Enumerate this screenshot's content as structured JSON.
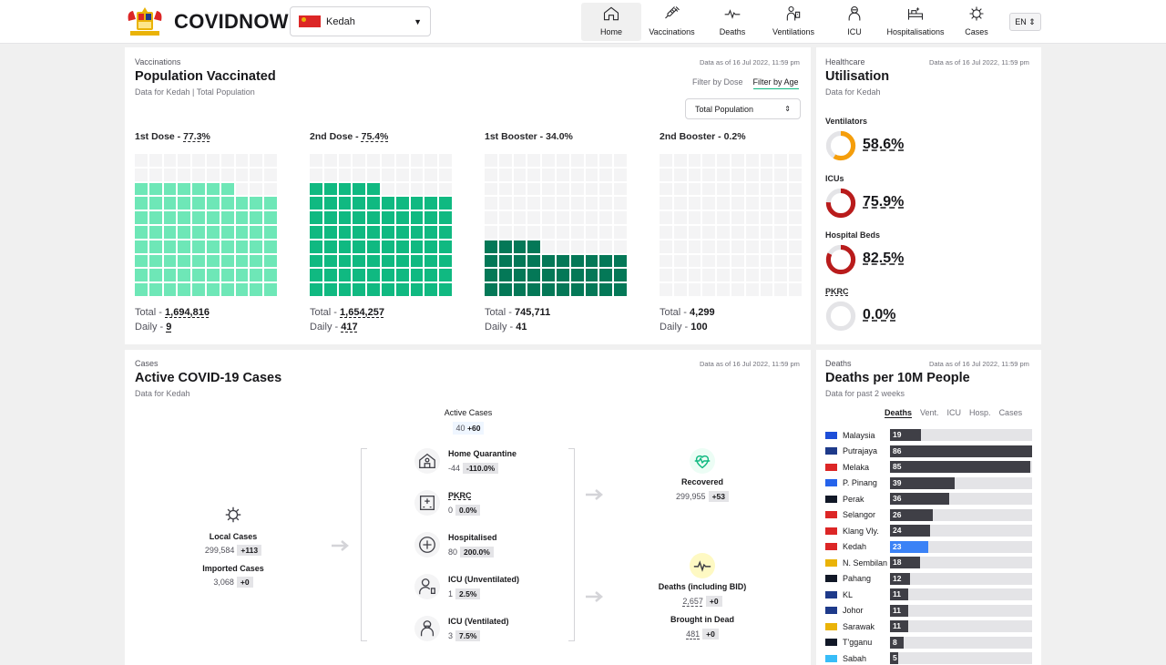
{
  "app": {
    "brand": "COVIDNOW",
    "state": "Kedah",
    "lang": "EN"
  },
  "nav": [
    {
      "label": "Home",
      "icon": "home-icon",
      "active": true
    },
    {
      "label": "Vaccinations",
      "icon": "syringe-icon",
      "active": false
    },
    {
      "label": "Deaths",
      "icon": "heartbeat-icon",
      "active": false
    },
    {
      "label": "Ventilations",
      "icon": "ventilator-icon",
      "active": false
    },
    {
      "label": "ICU",
      "icon": "icu-icon",
      "active": false
    },
    {
      "label": "Hospitalisations",
      "icon": "hospital-bed-icon",
      "active": false
    },
    {
      "label": "Cases",
      "icon": "virus-icon",
      "active": false
    }
  ],
  "vacc": {
    "label": "Vaccinations",
    "title": "Population Vaccinated",
    "subtitle": "Data for Kedah | Total Population",
    "asof": "Data as of 16 Jul 2022, 11:59 pm",
    "tab_dose": "Filter by Dose",
    "tab_age": "Filter by Age",
    "select": "Total Population",
    "total_label": "Total -",
    "daily_label": "Daily -",
    "doses": [
      {
        "name": "1st Dose -",
        "pct": 77.3,
        "pct_label": "77.3%",
        "total": "1,694,816",
        "daily": "9",
        "color": "#6ee7b7",
        "dash": true
      },
      {
        "name": "2nd Dose -",
        "pct": 75.4,
        "pct_label": "75.4%",
        "total": "1,654,257",
        "daily": "417",
        "color": "#10b981",
        "dash": true
      },
      {
        "name": "1st Booster -",
        "pct": 34.0,
        "pct_label": "34.0%",
        "total": "745,711",
        "daily": "41",
        "color": "#047857",
        "dash": false
      },
      {
        "name": "2nd Booster -",
        "pct": 0.2,
        "pct_label": "0.2%",
        "total": "4,299",
        "daily": "100",
        "color": "#064e3b",
        "dash": false
      }
    ]
  },
  "util": {
    "label": "Healthcare",
    "title": "Utilisation",
    "subtitle": "Data for Kedah",
    "asof": "Data as of 16 Jul 2022, 11:59 pm",
    "items": [
      {
        "name": "Ventilators",
        "pct": 58.6,
        "pct_label": "58.6%",
        "color": "#f59e0b"
      },
      {
        "name": "ICUs",
        "pct": 75.9,
        "pct_label": "75.9%",
        "color": "#b91c1c"
      },
      {
        "name": "Hospital Beds",
        "pct": 82.5,
        "pct_label": "82.5%",
        "color": "#b91c1c"
      },
      {
        "name": "PKRC",
        "pct": 0.0,
        "pct_label": "0.0%",
        "color": "#b91c1c"
      }
    ]
  },
  "cases": {
    "label": "Cases",
    "title": "Active COVID-19 Cases",
    "subtitle": "Data for Kedah",
    "asof": "Data as of 16 Jul 2022, 11:59 pm",
    "active": {
      "label": "Active Cases",
      "value": "40",
      "delta": "+60"
    },
    "local": {
      "label": "Local Cases",
      "value": "299,584",
      "delta": "+113"
    },
    "imported": {
      "label": "Imported Cases",
      "value": "3,068",
      "delta": "+0"
    },
    "flows": [
      {
        "label": "Home Quarantine",
        "value": "-44",
        "delta": "-110.0%",
        "icon": "home-quarantine-icon"
      },
      {
        "label": "PKRC",
        "value": "0",
        "delta": "0.0%",
        "icon": "pkrc-icon"
      },
      {
        "label": "Hospitalised",
        "value": "80",
        "delta": "200.0%",
        "icon": "hospital-cross-icon"
      },
      {
        "label": "ICU (Unventilated)",
        "value": "1",
        "delta": "2.5%",
        "icon": "icu-unventilated-icon"
      },
      {
        "label": "ICU (Ventilated)",
        "value": "3",
        "delta": "7.5%",
        "icon": "icu-ventilated-icon"
      }
    ],
    "recovered": {
      "label": "Recovered",
      "value": "299,955",
      "delta": "+53"
    },
    "deaths": {
      "label": "Deaths (including BID)",
      "value": "2,657",
      "delta": "+0"
    },
    "bid": {
      "label": "Brought in Dead",
      "value": "481",
      "delta": "+0"
    }
  },
  "deaths": {
    "label": "Deaths",
    "title": "Deaths per 10M People",
    "subtitle": "Data for past 2 weeks",
    "asof": "Data as of 16 Jul 2022, 11:59 pm",
    "tabs": [
      "Deaths",
      "Vent.",
      "ICU",
      "Hosp.",
      "Cases"
    ],
    "max": 86,
    "rows": [
      {
        "state": "Malaysia",
        "value": 19,
        "flag": "#1d4ed8"
      },
      {
        "state": "Putrajaya",
        "value": 86,
        "flag": "#1e3a8a"
      },
      {
        "state": "Melaka",
        "value": 85,
        "flag": "#dc2626"
      },
      {
        "state": "P. Pinang",
        "value": 39,
        "flag": "#2563eb"
      },
      {
        "state": "Perak",
        "value": 36,
        "flag": "#111827"
      },
      {
        "state": "Selangor",
        "value": 26,
        "flag": "#dc2626"
      },
      {
        "state": "Klang Vly.",
        "value": 24,
        "flag": "#dc2626"
      },
      {
        "state": "Kedah",
        "value": 23,
        "flag": "#dc2626",
        "me": true
      },
      {
        "state": "N. Sembilan",
        "value": 18,
        "flag": "#eab308"
      },
      {
        "state": "Pahang",
        "value": 12,
        "flag": "#111827"
      },
      {
        "state": "KL",
        "value": 11,
        "flag": "#1e3a8a"
      },
      {
        "state": "Johor",
        "value": 11,
        "flag": "#1e3a8a"
      },
      {
        "state": "Sarawak",
        "value": 11,
        "flag": "#eab308"
      },
      {
        "state": "T'gganu",
        "value": 8,
        "flag": "#111827"
      },
      {
        "state": "Sabah",
        "value": 5,
        "flag": "#38bdf8"
      }
    ]
  },
  "colors": {
    "green_light": "#6ee7b7",
    "green": "#10b981",
    "green_dark": "#047857",
    "grey_cell": "#f4f4f5",
    "bar": "#3f3f46",
    "bar_me": "#3b82f6"
  }
}
